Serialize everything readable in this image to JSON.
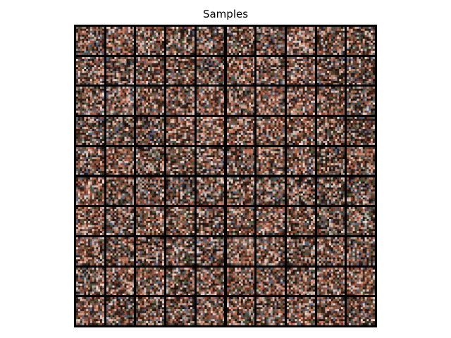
{
  "figure": {
    "title": "Samples"
  },
  "grid": {
    "rows": 10,
    "cols": 10,
    "description_colors": {
      "background": "#000000",
      "palette": [
        "#1a1210",
        "#3a2418",
        "#6b3a2a",
        "#a0533c",
        "#c87a5e",
        "#e0a98f",
        "#f0d7c8",
        "#d9d2cf",
        "#7a6b5e",
        "#4a5a3a",
        "#5a6a8a",
        "#2b1f1b"
      ]
    }
  }
}
